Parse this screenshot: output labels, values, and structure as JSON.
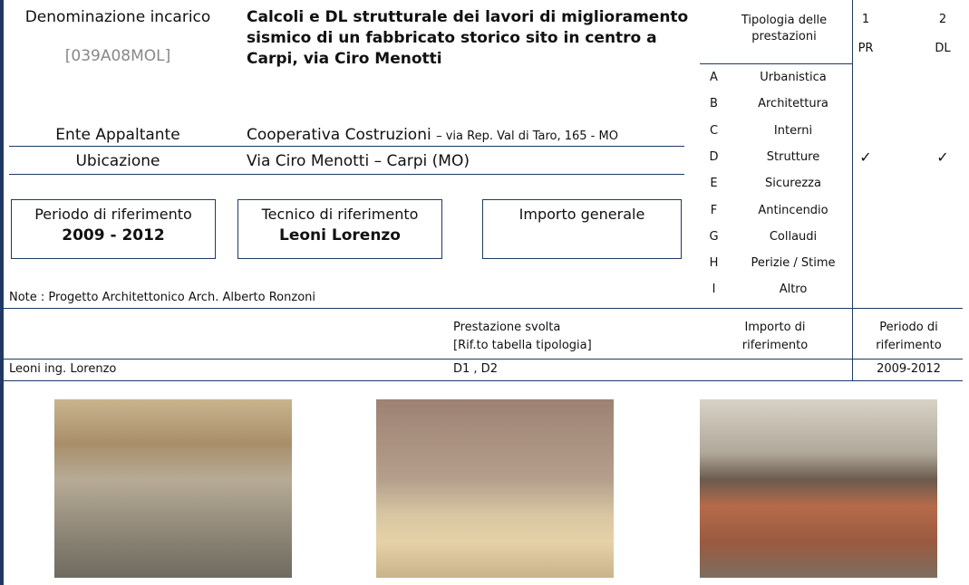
{
  "header": {
    "label": "Denominazione incarico",
    "code": "[039A08MOL]",
    "title": "Calcoli e DL strutturale dei lavori di miglioramento sismico di un fabbricato storico sito in centro a Carpi, via Ciro Menotti"
  },
  "ente": {
    "label": "Ente Appaltante",
    "value": "Cooperativa Costruzioni",
    "detail": "– via Rep. Val di Taro, 165 - MO"
  },
  "ubicazione": {
    "label": "Ubicazione",
    "value": "Via Ciro Menotti – Carpi (MO)"
  },
  "boxes": [
    {
      "label": "Periodo di riferimento",
      "value": "2009 - 2012"
    },
    {
      "label": "Tecnico di riferimento",
      "value": "Leoni Lorenzo"
    },
    {
      "label": "Importo generale"
    }
  ],
  "note": "Note : Progetto Architettonico Arch. Alberto Ronzoni",
  "typology": {
    "header": "Tipologia delle prestazioni",
    "columns": [
      {
        "num": "1",
        "code": "PR"
      },
      {
        "num": "2",
        "code": "DL"
      }
    ],
    "rows": [
      {
        "letter": "A",
        "name": "Urbanistica"
      },
      {
        "letter": "B",
        "name": "Architettura"
      },
      {
        "letter": "C",
        "name": "Interni"
      },
      {
        "letter": "D",
        "name": "Strutture",
        "checks": [
          "✓",
          "✓"
        ]
      },
      {
        "letter": "E",
        "name": "Sicurezza"
      },
      {
        "letter": "F",
        "name": "Antincendio"
      },
      {
        "letter": "G",
        "name": "Collaudi"
      },
      {
        "letter": "H",
        "name": "Perizie / Stime"
      },
      {
        "letter": "I",
        "name": "Altro"
      }
    ]
  },
  "summary": {
    "headers": {
      "prestazione": [
        "Prestazione svolta",
        "[Rif.to tabella tipologia]"
      ],
      "importo": [
        "Importo di",
        "riferimento"
      ],
      "periodo": [
        "Periodo di",
        "riferimento"
      ]
    },
    "row": {
      "name": "Leoni ing. Lorenzo",
      "prestazione": "D1 , D2",
      "periodo": "2009-2012"
    }
  }
}
